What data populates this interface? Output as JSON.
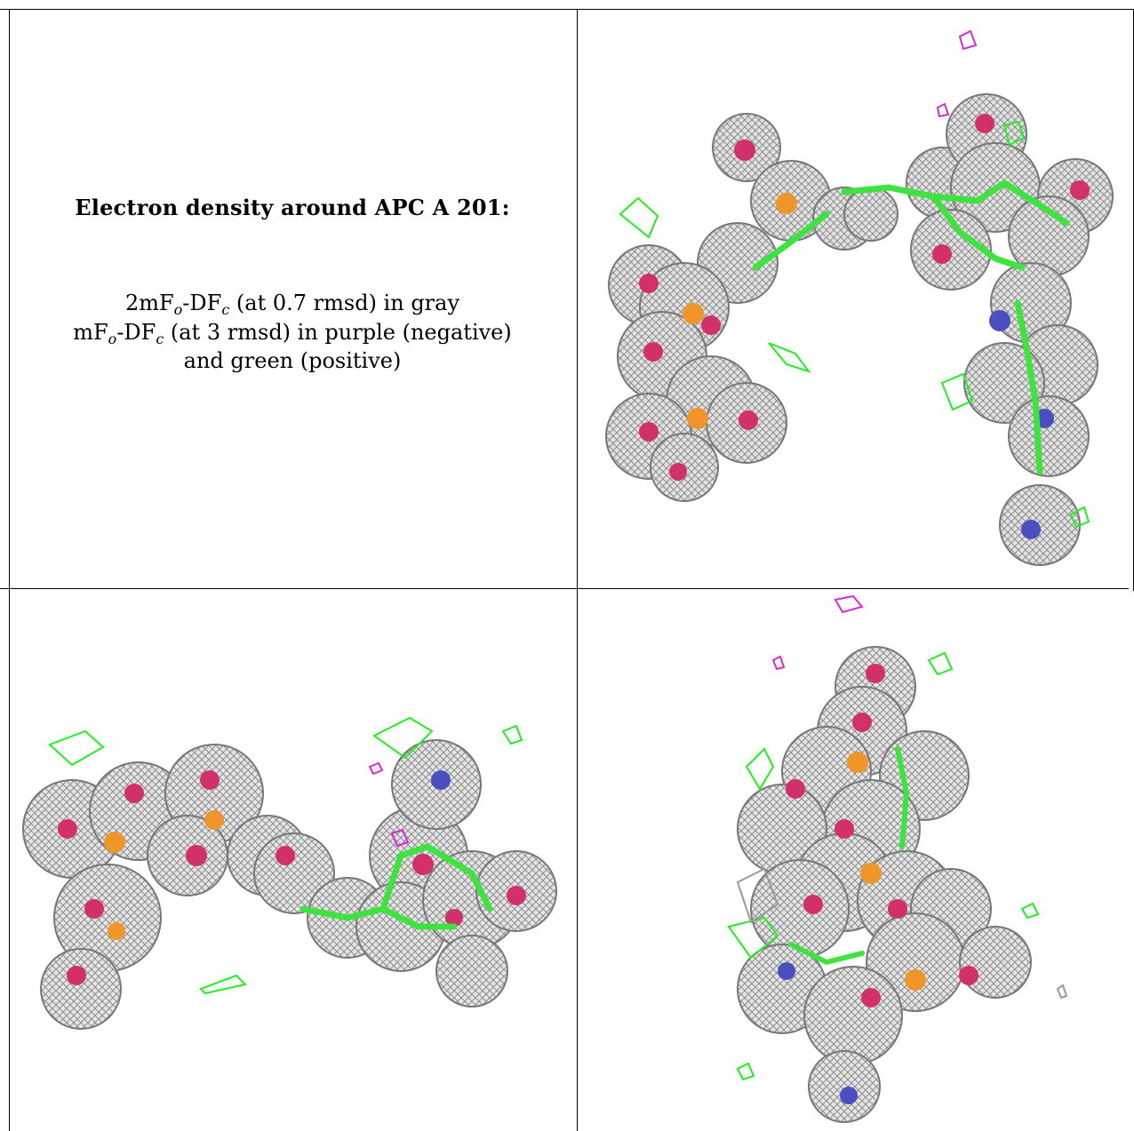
{
  "legend": {
    "title": "Electron density around APC A 201:",
    "line1": {
      "a": "2mF",
      "a_sub": "o",
      "b": "-DF",
      "b_sub": "c",
      "rest": " (at 0.7 rmsd) in gray"
    },
    "line2": {
      "a": "mF",
      "a_sub": "o",
      "b": "-DF",
      "b_sub": "c",
      "rest": " (at 3 rmsd) in purple (negative)"
    },
    "line3": "and green (positive)"
  },
  "colors": {
    "mesh_gray": "#8c8c8c",
    "mesh_light": "#c8c8c8",
    "oxygen": "#d2306b",
    "phosphorus": "#f0952a",
    "carbon": "#3fe33f",
    "nitrogen": "#4a4fc0",
    "positive_density": "#22ee22",
    "negative_density": "#d62ad6",
    "grid_line": "#000000"
  }
}
